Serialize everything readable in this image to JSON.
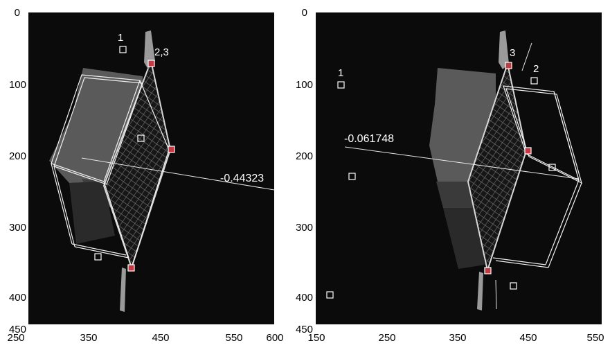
{
  "panels": [
    {
      "y_ticks": [
        "0",
        "100",
        "200",
        "300",
        "400",
        "450"
      ],
      "x_ticks": [
        "250",
        "350",
        "450",
        "550",
        "600"
      ],
      "markers": [
        "1",
        "2,3"
      ],
      "value_label": "-0.44323"
    },
    {
      "y_ticks": [
        "0",
        "100",
        "200",
        "300",
        "400",
        "450"
      ],
      "x_ticks": [
        "150",
        "250",
        "350",
        "450",
        "550"
      ],
      "markers": [
        "1",
        "2",
        "3"
      ],
      "value_label": "-0.061748"
    }
  ],
  "colors": {
    "background": "#0b0b0b",
    "overlay": "#ffffff",
    "keypoint": "#e8434b"
  }
}
